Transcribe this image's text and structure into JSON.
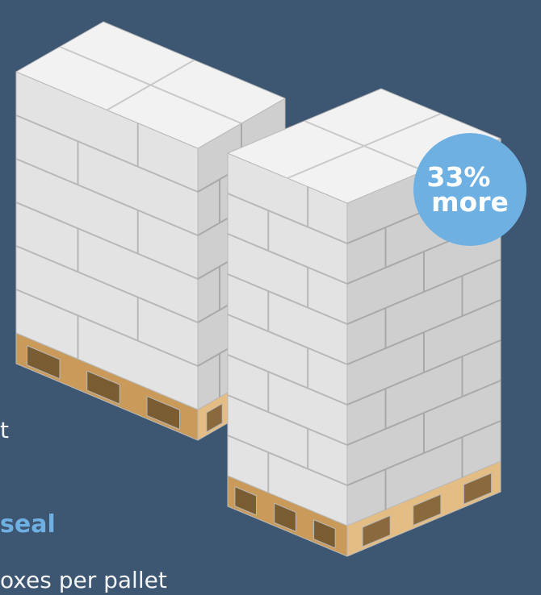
{
  "badge": {
    "line1": "33%",
    "line2": "more",
    "color": "#6fb0e3"
  },
  "text_fragments": {
    "a": "t",
    "b": "seal",
    "c": "oxes per pallet"
  },
  "colors": {
    "background": "#3d5672",
    "box_top": "#f2f2f2",
    "box_left": "#e3e3e3",
    "box_right": "#cfcfcf",
    "pallet_top": "#e3bd84",
    "pallet_side": "#c99a5a"
  },
  "illustration": {
    "subject": "two pallets of stacked boxes",
    "left_stack_layers": 6,
    "right_stack_layers": 8
  }
}
